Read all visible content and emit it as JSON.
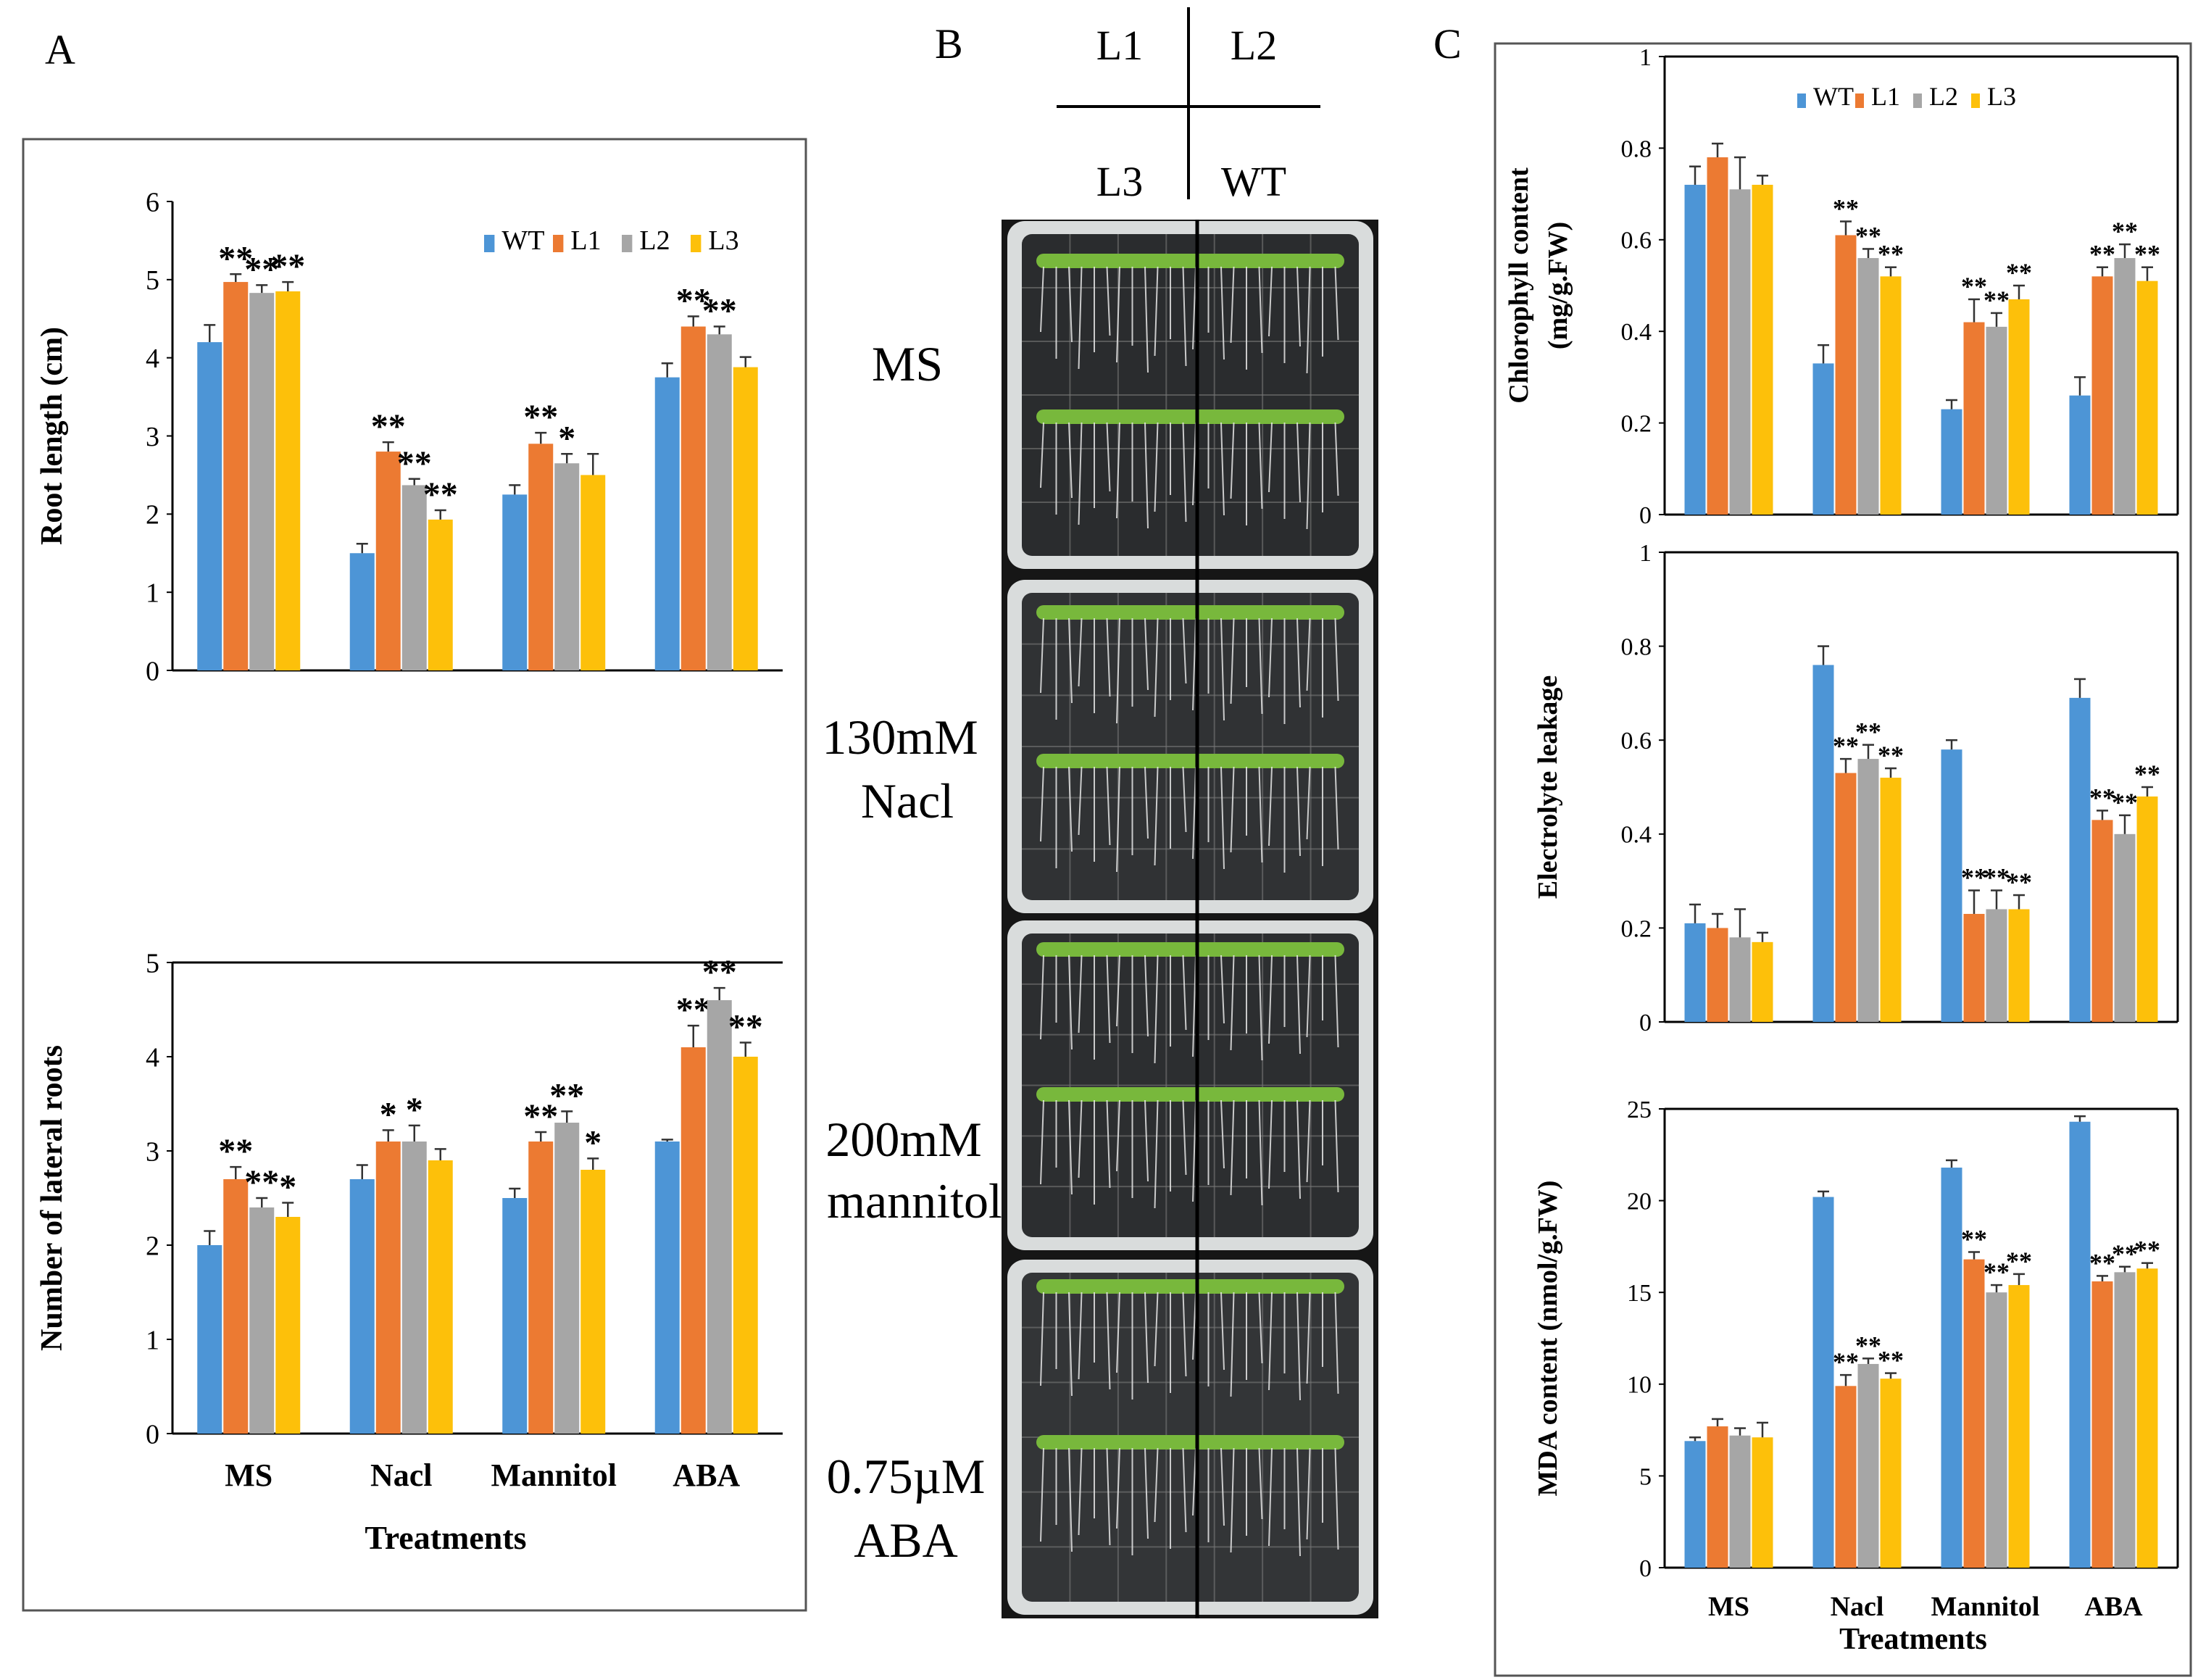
{
  "panel_labels": [
    "A",
    "B",
    "C"
  ],
  "colors": {
    "WT": "#4d95d6",
    "L1": "#ec7a32",
    "L2": "#a6a6a6",
    "L3": "#fdc00a"
  },
  "panel_b": {
    "quadrants": {
      "top_left": "L1",
      "top_right": "L2",
      "bottom_left": "L3",
      "bottom_right": "WT"
    },
    "plates": [
      {
        "lines": [
          "MS"
        ]
      },
      {
        "lines": [
          "130mM",
          "Nacl"
        ]
      },
      {
        "lines": [
          "200mM",
          "mannitol"
        ]
      },
      {
        "lines": [
          "0.75µM",
          "ABA"
        ]
      }
    ]
  },
  "chart_data": [
    {
      "id": "A-top",
      "type": "bar",
      "panel": "A",
      "title": "",
      "xlabel": "",
      "ylabel": "Root length (cm)",
      "ylim": [
        0,
        6
      ],
      "yticks": [
        "0",
        "1",
        "2",
        "3",
        "4",
        "5",
        "6"
      ],
      "categories": [
        "MS",
        "Nacl",
        "Mannitol",
        "ABA"
      ],
      "show_category_labels": false,
      "legend": [
        "WT",
        "L1",
        "L2",
        "L3"
      ],
      "legend_position": "top-right",
      "series": [
        {
          "name": "WT",
          "values": [
            4.2,
            1.5,
            2.25,
            3.75
          ],
          "errors": [
            0.22,
            0.12,
            0.12,
            0.18
          ],
          "sig": [
            "",
            "",
            "",
            ""
          ]
        },
        {
          "name": "L1",
          "values": [
            4.97,
            2.8,
            2.9,
            4.4
          ],
          "errors": [
            0.1,
            0.12,
            0.14,
            0.13
          ],
          "sig": [
            "**",
            "**",
            "**",
            "**"
          ]
        },
        {
          "name": "L2",
          "values": [
            4.83,
            2.37,
            2.65,
            4.3
          ],
          "errors": [
            0.1,
            0.08,
            0.12,
            0.1
          ],
          "sig": [
            "**",
            "**",
            "*",
            "**"
          ]
        },
        {
          "name": "L3",
          "values": [
            4.85,
            1.93,
            2.5,
            3.88
          ],
          "errors": [
            0.12,
            0.12,
            0.27,
            0.13
          ],
          "sig": [
            "**",
            "**",
            "",
            ""
          ]
        }
      ]
    },
    {
      "id": "A-bottom",
      "type": "bar",
      "panel": "A",
      "title": "",
      "xlabel": "Treatments",
      "ylabel": "Number of lateral roots",
      "ylim": [
        0,
        5
      ],
      "yticks": [
        "0",
        "1",
        "2",
        "3",
        "4",
        "5"
      ],
      "categories": [
        "MS",
        "Nacl",
        "Mannitol",
        "ABA"
      ],
      "show_category_labels": true,
      "legend": [],
      "legend_position": "",
      "series": [
        {
          "name": "WT",
          "values": [
            2.0,
            2.7,
            2.5,
            3.1
          ],
          "errors": [
            0.15,
            0.15,
            0.1,
            0.02
          ],
          "sig": [
            "",
            "",
            "",
            ""
          ]
        },
        {
          "name": "L1",
          "values": [
            2.7,
            3.1,
            3.1,
            4.1
          ],
          "errors": [
            0.13,
            0.12,
            0.1,
            0.23
          ],
          "sig": [
            "**",
            "*",
            "**",
            "**"
          ]
        },
        {
          "name": "L2",
          "values": [
            2.4,
            3.1,
            3.3,
            4.6
          ],
          "errors": [
            0.1,
            0.17,
            0.12,
            0.13
          ],
          "sig": [
            "**",
            "*",
            "**",
            "**"
          ]
        },
        {
          "name": "L3",
          "values": [
            2.3,
            2.9,
            2.8,
            4.0
          ],
          "errors": [
            0.15,
            0.12,
            0.12,
            0.15
          ],
          "sig": [
            "*",
            "",
            "*",
            "**"
          ]
        }
      ]
    },
    {
      "id": "C-top",
      "type": "bar",
      "panel": "C",
      "title": "",
      "xlabel": "",
      "ylabel": [
        "Chlorophyll content",
        "(mg/g.FW)"
      ],
      "ylim": [
        0,
        1
      ],
      "yticks": [
        "0",
        "0.2",
        "0.4",
        "0.6",
        "0.8",
        "1"
      ],
      "categories": [
        "MS",
        "Nacl",
        "Mannitol",
        "ABA"
      ],
      "show_category_labels": false,
      "legend": [
        "WT",
        "L1",
        "L2",
        "L3"
      ],
      "legend_position": "top-right",
      "series": [
        {
          "name": "WT",
          "values": [
            0.72,
            0.33,
            0.23,
            0.26
          ],
          "errors": [
            0.04,
            0.04,
            0.02,
            0.04
          ],
          "sig": [
            "",
            "",
            "",
            ""
          ]
        },
        {
          "name": "L1",
          "values": [
            0.78,
            0.61,
            0.42,
            0.52
          ],
          "errors": [
            0.03,
            0.03,
            0.05,
            0.02
          ],
          "sig": [
            "",
            "**",
            "**",
            "**"
          ]
        },
        {
          "name": "L2",
          "values": [
            0.71,
            0.56,
            0.41,
            0.56
          ],
          "errors": [
            0.07,
            0.02,
            0.03,
            0.03
          ],
          "sig": [
            "",
            "**",
            "**",
            "**"
          ]
        },
        {
          "name": "L3",
          "values": [
            0.72,
            0.52,
            0.47,
            0.51
          ],
          "errors": [
            0.02,
            0.02,
            0.03,
            0.03
          ],
          "sig": [
            "",
            "**",
            "**",
            "**"
          ]
        }
      ]
    },
    {
      "id": "C-middle",
      "type": "bar",
      "panel": "C",
      "title": "",
      "xlabel": "",
      "ylabel": "Electrolyte leakage",
      "ylim": [
        0,
        1
      ],
      "yticks": [
        "0",
        "0.2",
        "0.4",
        "0.6",
        "0.8",
        "1"
      ],
      "categories": [
        "MS",
        "Nacl",
        "Mannitol",
        "ABA"
      ],
      "show_category_labels": false,
      "legend": [],
      "legend_position": "",
      "series": [
        {
          "name": "WT",
          "values": [
            0.21,
            0.76,
            0.58,
            0.69
          ],
          "errors": [
            0.04,
            0.04,
            0.02,
            0.04
          ],
          "sig": [
            "",
            "",
            "",
            ""
          ]
        },
        {
          "name": "L1",
          "values": [
            0.2,
            0.53,
            0.23,
            0.43
          ],
          "errors": [
            0.03,
            0.03,
            0.05,
            0.02
          ],
          "sig": [
            "",
            "**",
            "**",
            "**"
          ]
        },
        {
          "name": "L2",
          "values": [
            0.18,
            0.56,
            0.24,
            0.4
          ],
          "errors": [
            0.06,
            0.03,
            0.04,
            0.04
          ],
          "sig": [
            "",
            "**",
            "**",
            "**"
          ]
        },
        {
          "name": "L3",
          "values": [
            0.17,
            0.52,
            0.24,
            0.48
          ],
          "errors": [
            0.02,
            0.02,
            0.03,
            0.02
          ],
          "sig": [
            "",
            "**",
            "**",
            "**"
          ]
        }
      ]
    },
    {
      "id": "C-bottom",
      "type": "bar",
      "panel": "C",
      "title": "",
      "xlabel": "Treatments",
      "ylabel": "MDA content (nmol/g.FW)",
      "ylim": [
        0,
        25
      ],
      "yticks": [
        "0",
        "5",
        "10",
        "15",
        "20",
        "25"
      ],
      "categories": [
        "MS",
        "Nacl",
        "Mannitol",
        "ABA"
      ],
      "show_category_labels": true,
      "legend": [],
      "legend_position": "",
      "series": [
        {
          "name": "WT",
          "values": [
            6.9,
            20.2,
            21.8,
            24.3
          ],
          "errors": [
            0.2,
            0.3,
            0.4,
            0.3
          ],
          "sig": [
            "",
            "",
            "",
            ""
          ]
        },
        {
          "name": "L1",
          "values": [
            7.7,
            9.9,
            16.8,
            15.6
          ],
          "errors": [
            0.4,
            0.6,
            0.4,
            0.3
          ],
          "sig": [
            "",
            "**",
            "**",
            "**"
          ]
        },
        {
          "name": "L2",
          "values": [
            7.2,
            11.1,
            15.0,
            16.1
          ],
          "errors": [
            0.4,
            0.3,
            0.4,
            0.3
          ],
          "sig": [
            "",
            "**",
            "**",
            "**"
          ]
        },
        {
          "name": "L3",
          "values": [
            7.1,
            10.3,
            15.4,
            16.3
          ],
          "errors": [
            0.8,
            0.3,
            0.6,
            0.3
          ],
          "sig": [
            "",
            "**",
            "**",
            "**"
          ]
        }
      ]
    }
  ]
}
